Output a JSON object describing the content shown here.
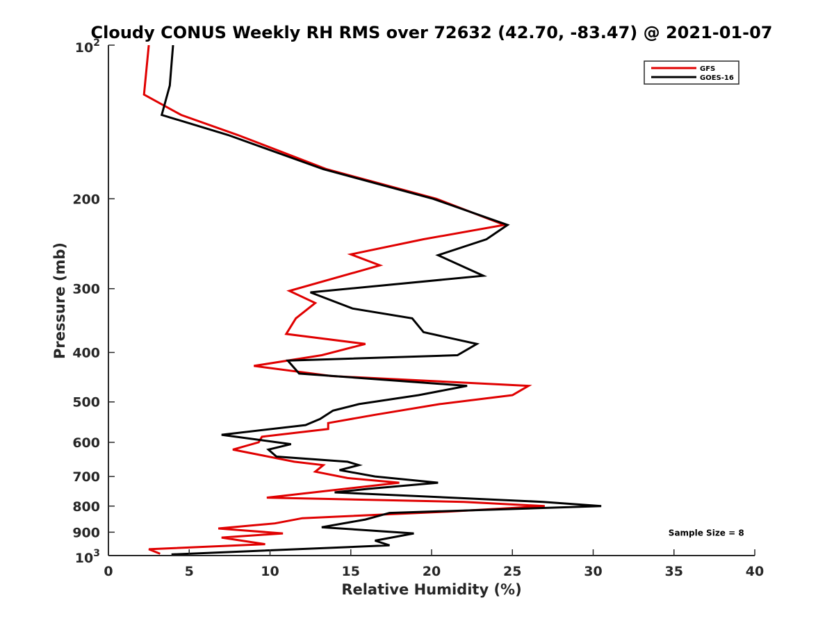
{
  "chart_data": {
    "type": "line",
    "title": "Cloudy CONUS Weekly RH RMS over 72632 (42.70, -83.47) @ 2021-01-07",
    "xlabel": "Relative Humidity (%)",
    "ylabel": "Pressure (mb)",
    "xlim": [
      0,
      40
    ],
    "ylim": [
      100,
      1000
    ],
    "y_scale": "log",
    "y_reversed": true,
    "x_ticks": [
      "0",
      "5",
      "10",
      "15",
      "20",
      "25",
      "30",
      "35",
      "40"
    ],
    "y_ticks": [
      {
        "value": 100,
        "base": "10",
        "exp": "2"
      },
      {
        "value": 200,
        "label": "200"
      },
      {
        "value": 300,
        "label": "300"
      },
      {
        "value": 400,
        "label": "400"
      },
      {
        "value": 500,
        "label": "500"
      },
      {
        "value": 600,
        "label": "600"
      },
      {
        "value": 700,
        "label": "700"
      },
      {
        "value": 800,
        "label": "800"
      },
      {
        "value": 900,
        "label": "900"
      },
      {
        "value": 1000,
        "base": "10",
        "exp": "3"
      }
    ],
    "grid": false,
    "legend_position": "top-right",
    "series": [
      {
        "name": "GFS",
        "color": "#e00000",
        "points": [
          [
            2.5,
            100
          ],
          [
            2.2,
            125
          ],
          [
            4.5,
            137
          ],
          [
            8,
            150
          ],
          [
            13.5,
            175
          ],
          [
            20.3,
            200
          ],
          [
            24.5,
            225
          ],
          [
            19.5,
            240
          ],
          [
            15,
            257
          ],
          [
            16.8,
            270
          ],
          [
            11.2,
            303
          ],
          [
            12.8,
            320
          ],
          [
            11.6,
            343
          ],
          [
            11,
            368
          ],
          [
            15.9,
            385
          ],
          [
            13.2,
            405
          ],
          [
            9,
            425
          ],
          [
            13.8,
            445
          ],
          [
            26,
            465
          ],
          [
            25,
            485
          ],
          [
            20.5,
            505
          ],
          [
            16.5,
            530
          ],
          [
            13.6,
            550
          ],
          [
            13.6,
            565
          ],
          [
            9.5,
            585
          ],
          [
            9.3,
            600
          ],
          [
            7.7,
            620
          ],
          [
            11.5,
            655
          ],
          [
            13.3,
            665
          ],
          [
            12.8,
            685
          ],
          [
            14.8,
            705
          ],
          [
            18,
            720
          ],
          [
            9.8,
            770
          ],
          [
            22,
            785
          ],
          [
            27,
            800
          ],
          [
            21,
            820
          ],
          [
            12,
            845
          ],
          [
            10.3,
            865
          ],
          [
            6.8,
            885
          ],
          [
            10.8,
            905
          ],
          [
            7,
            922
          ],
          [
            9.7,
            950
          ],
          [
            2.5,
            972
          ],
          [
            3.2,
            992
          ]
        ]
      },
      {
        "name": "GOES-16",
        "color": "#000000",
        "points": [
          [
            4,
            100
          ],
          [
            3.8,
            120
          ],
          [
            3.3,
            137
          ],
          [
            7.4,
            150
          ],
          [
            13.3,
            175
          ],
          [
            20.1,
            200
          ],
          [
            24.7,
            225
          ],
          [
            23.4,
            240
          ],
          [
            20.4,
            258
          ],
          [
            23.2,
            283
          ],
          [
            12.5,
            305
          ],
          [
            15.1,
            328
          ],
          [
            18.8,
            343
          ],
          [
            19.5,
            365
          ],
          [
            22.8,
            385
          ],
          [
            21.6,
            405
          ],
          [
            11.1,
            415
          ],
          [
            11.8,
            440
          ],
          [
            22.2,
            465
          ],
          [
            19.2,
            485
          ],
          [
            15.5,
            505
          ],
          [
            13.9,
            520
          ],
          [
            13.1,
            540
          ],
          [
            12.2,
            555
          ],
          [
            7,
            580
          ],
          [
            11.3,
            605
          ],
          [
            9.9,
            620
          ],
          [
            10.4,
            640
          ],
          [
            14.8,
            655
          ],
          [
            15.5,
            665
          ],
          [
            14.3,
            680
          ],
          [
            16.5,
            700
          ],
          [
            20.4,
            720
          ],
          [
            16.1,
            740
          ],
          [
            14,
            752
          ],
          [
            26.9,
            785
          ],
          [
            30.5,
            800
          ],
          [
            17.4,
            825
          ],
          [
            15.9,
            850
          ],
          [
            13.2,
            880
          ],
          [
            18.9,
            905
          ],
          [
            16.5,
            935
          ],
          [
            17.4,
            955
          ],
          [
            3.9,
            995
          ]
        ]
      }
    ],
    "annotations": [
      {
        "text": "Sample Size = 8",
        "x": 37,
        "y": 900
      }
    ]
  }
}
